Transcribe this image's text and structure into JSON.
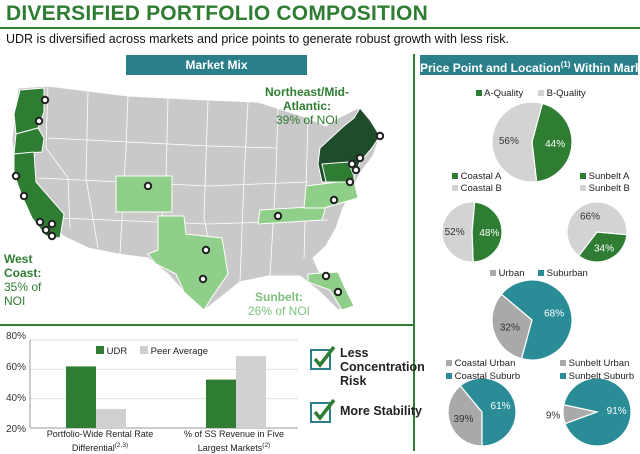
{
  "title": "DIVERSIFIED PORTFOLIO COMPOSITION",
  "subtitle": "UDR is diversified across markets and price points to generate robust growth with less risk.",
  "market_mix": {
    "header": "Market Mix",
    "northeast": {
      "name": "Northeast/Mid-Atlantic:",
      "share": "39% of NOI"
    },
    "west_coast": {
      "name": "West Coast:",
      "share": "35% of NOI"
    },
    "sunbelt": {
      "name": "Sunbelt:",
      "share": "26% of NOI"
    }
  },
  "price_point": {
    "header": "Price Point and Location",
    "header_sup": "(1)",
    "header_tail": " Within Market"
  },
  "colors": {
    "dark_green": "#2e7d32",
    "light_green": "#8fcf8a",
    "gray": "#c8c8c8",
    "teal": "#2a8c96",
    "mid_gray": "#a9a9a9"
  },
  "checks": [
    {
      "line1": "Less",
      "line2": "Concentration",
      "line3": "Risk"
    },
    {
      "line1": "More Stability"
    }
  ],
  "chart_data": [
    {
      "type": "bar",
      "categories": [
        "Portfolio-Wide Rental Rate Differential",
        "% of SS Revenue in Five Largest Markets"
      ],
      "category_sups": [
        "(2,3)",
        "(2)"
      ],
      "series": [
        {
          "name": "UDR",
          "values": [
            62,
            53
          ],
          "color": "#2e7d32"
        },
        {
          "name": "Peer Average",
          "values": [
            33,
            69
          ],
          "color": "#d0d0d0"
        }
      ],
      "ylim": [
        20,
        80
      ],
      "yticks": [
        "80%",
        "60%",
        "40%",
        "20%"
      ]
    },
    {
      "type": "pie",
      "series": [
        {
          "name": "A-Quality",
          "value": 44,
          "label": "44%",
          "color": "#2e7d32"
        },
        {
          "name": "B-Quality",
          "value": 56,
          "label": "56%",
          "color": "#d3d3d3"
        }
      ]
    },
    {
      "type": "pie",
      "series": [
        {
          "name": "Coastal A",
          "value": 48,
          "label": "48%",
          "color": "#2e7d32"
        },
        {
          "name": "Coastal B",
          "value": 52,
          "label": "52%",
          "color": "#d3d3d3"
        }
      ]
    },
    {
      "type": "pie",
      "series": [
        {
          "name": "Sunbelt A",
          "value": 34,
          "label": "34%",
          "color": "#2e7d32"
        },
        {
          "name": "Sunbelt B",
          "value": 66,
          "label": "66%",
          "color": "#d3d3d3"
        }
      ]
    },
    {
      "type": "pie",
      "series": [
        {
          "name": "Urban",
          "value": 32,
          "label": "32%",
          "color": "#a9a9a9"
        },
        {
          "name": "Suburban",
          "value": 68,
          "label": "68%",
          "color": "#2a8c96"
        }
      ]
    },
    {
      "type": "pie",
      "series": [
        {
          "name": "Coastal Urban",
          "value": 39,
          "label": "39%",
          "color": "#a9a9a9"
        },
        {
          "name": "Coastal Suburb",
          "value": 61,
          "label": "61%",
          "color": "#2a8c96"
        }
      ]
    },
    {
      "type": "pie",
      "series": [
        {
          "name": "Sunbelt Urban",
          "value": 9,
          "label": "9%",
          "color": "#a9a9a9"
        },
        {
          "name": "Sunbelt Suburb",
          "value": 91,
          "label": "91%",
          "color": "#2a8c96"
        }
      ]
    }
  ]
}
